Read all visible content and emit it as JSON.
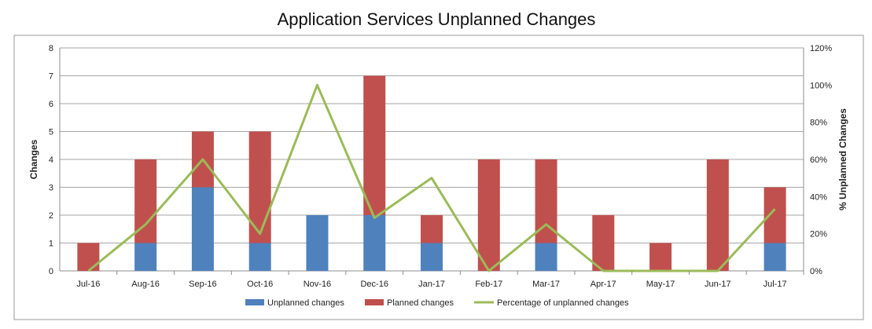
{
  "chart_data": {
    "type": "bar",
    "stacked": true,
    "title": "Application Services Unplanned Changes",
    "ylabel": "Changes",
    "y2label": "% Unplanned Changes",
    "categories": [
      "Jul-16",
      "Aug-16",
      "Sep-16",
      "Oct-16",
      "Nov-16",
      "Dec-16",
      "Jan-17",
      "Feb-17",
      "Mar-17",
      "Apr-17",
      "May-17",
      "Jun-17",
      "Jul-17"
    ],
    "ylim": [
      0,
      8
    ],
    "yticks": [
      "0",
      "1",
      "2",
      "3",
      "4",
      "5",
      "6",
      "7",
      "8"
    ],
    "y2lim": [
      0,
      1.2
    ],
    "y2ticks": [
      "0%",
      "20%",
      "40%",
      "60%",
      "80%",
      "100%",
      "120%"
    ],
    "grid": true,
    "legend_position": "bottom",
    "series": [
      {
        "name": "Unplanned changes",
        "type": "bar",
        "axis": "left",
        "color": "#4F81BD",
        "values": [
          0,
          1,
          3,
          1,
          2,
          2,
          1,
          0,
          1,
          0,
          0,
          0,
          1
        ]
      },
      {
        "name": "Planned changes",
        "type": "bar",
        "axis": "left",
        "color": "#C0504D",
        "values": [
          1,
          3,
          2,
          4,
          0,
          5,
          1,
          4,
          3,
          2,
          1,
          4,
          2
        ]
      },
      {
        "name": "Percentage of unplanned changes",
        "type": "line",
        "axis": "right",
        "color": "#9BBB59",
        "values": [
          0,
          0.25,
          0.6,
          0.2,
          1.0,
          0.2857,
          0.5,
          0,
          0.25,
          0,
          0,
          0,
          0.3333
        ]
      }
    ]
  }
}
